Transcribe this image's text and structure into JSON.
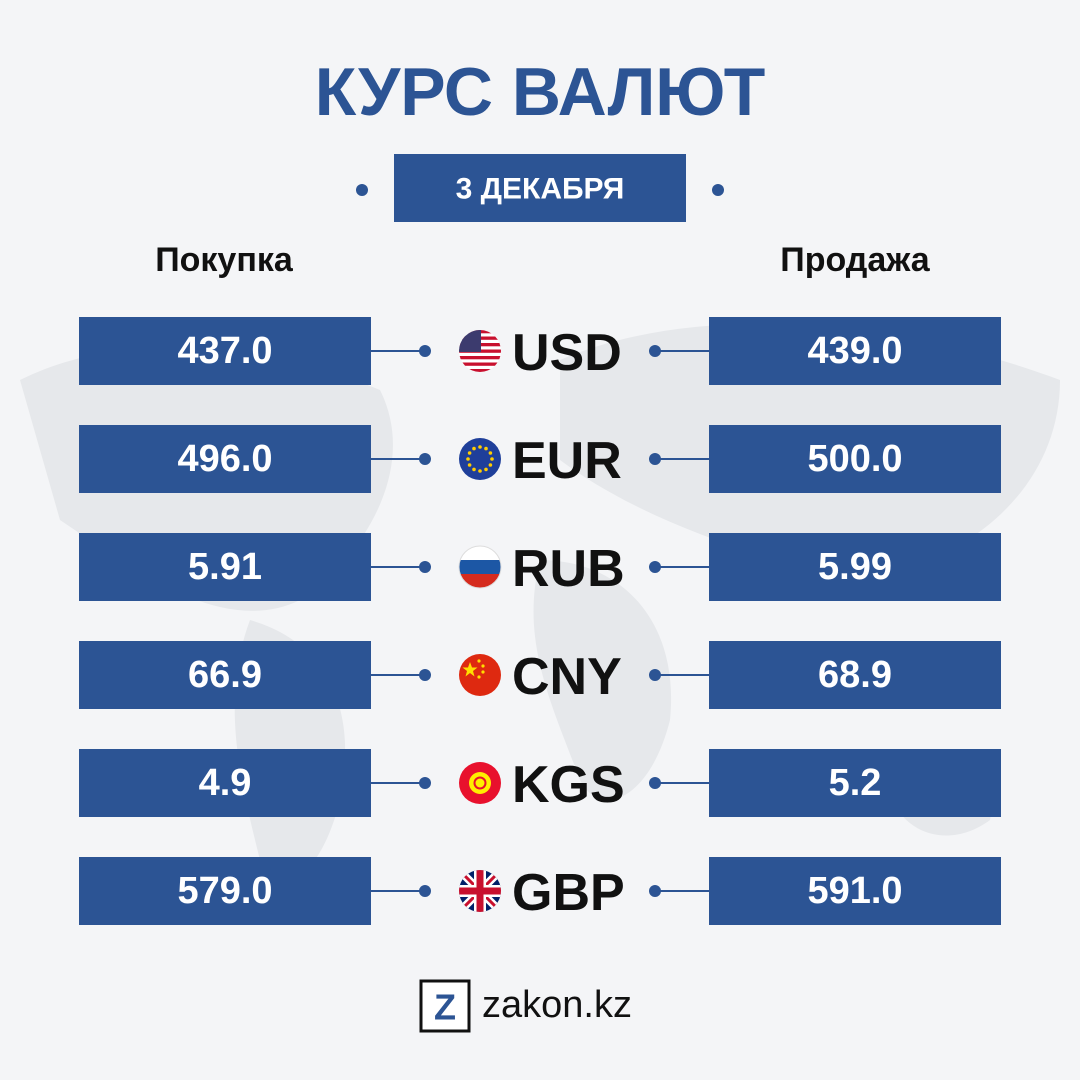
{
  "title": "КУРС ВАЛЮТ",
  "date": "3 ДЕКАБРЯ",
  "headers": {
    "buy": "Покупка",
    "sell": "Продажа"
  },
  "rows": [
    {
      "code": "USD",
      "buy": "437.0",
      "sell": "439.0"
    },
    {
      "code": "EUR",
      "buy": "496.0",
      "sell": "500.0"
    },
    {
      "code": "RUB",
      "buy": "5.91",
      "sell": "5.99"
    },
    {
      "code": "CNY",
      "buy": "66.9",
      "sell": "68.9"
    },
    {
      "code": "KGS",
      "buy": "4.9",
      "sell": "5.2"
    },
    {
      "code": "GBP",
      "buy": "579.0",
      "sell": "591.0"
    }
  ],
  "logo": {
    "icon": "Z",
    "text": "zakon.kz"
  }
}
